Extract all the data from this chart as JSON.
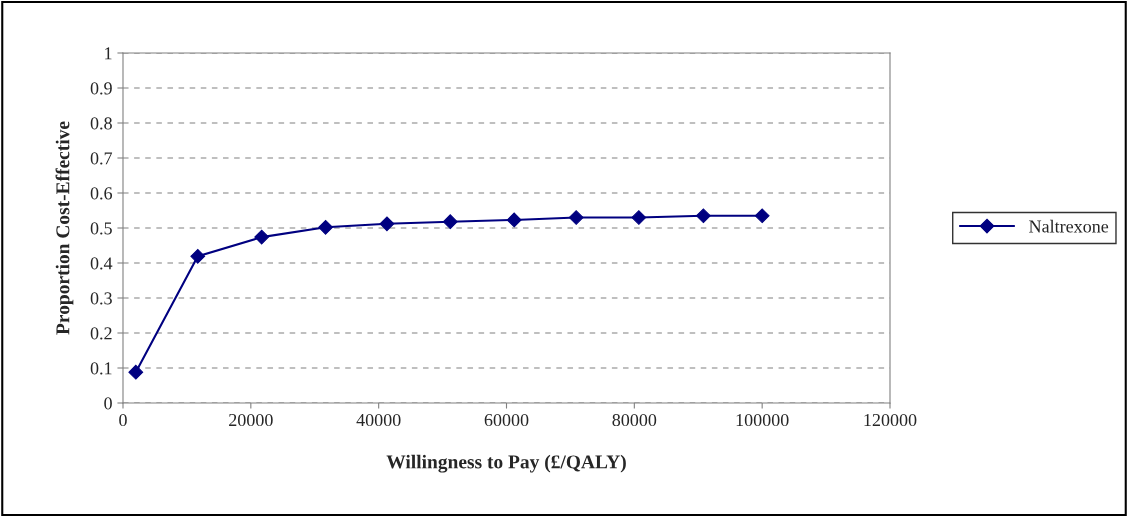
{
  "chart_data": {
    "type": "line",
    "xlabel": "Willingness to Pay (£/QALY)",
    "ylabel": "Proportion Cost-Effective",
    "x": [
      2000,
      11700,
      21700,
      31700,
      41300,
      51200,
      61200,
      70900,
      80700,
      90800,
      100000
    ],
    "series": [
      {
        "name": "Naltrexone",
        "color": "#000080",
        "values": [
          0.088,
          0.419,
          0.474,
          0.502,
          0.512,
          0.518,
          0.523,
          0.53,
          0.53,
          0.535,
          0.535
        ]
      }
    ],
    "xlim": [
      0,
      120000
    ],
    "xticks": [
      0,
      20000,
      40000,
      60000,
      80000,
      100000,
      120000
    ],
    "ylim": [
      0,
      1
    ],
    "yticks": [
      0,
      0.1,
      0.2,
      0.3,
      0.4,
      0.5,
      0.6,
      0.7,
      0.8,
      0.9,
      1
    ],
    "grid": "y",
    "legend": "right",
    "marker": "diamond",
    "line_style": "solid"
  }
}
